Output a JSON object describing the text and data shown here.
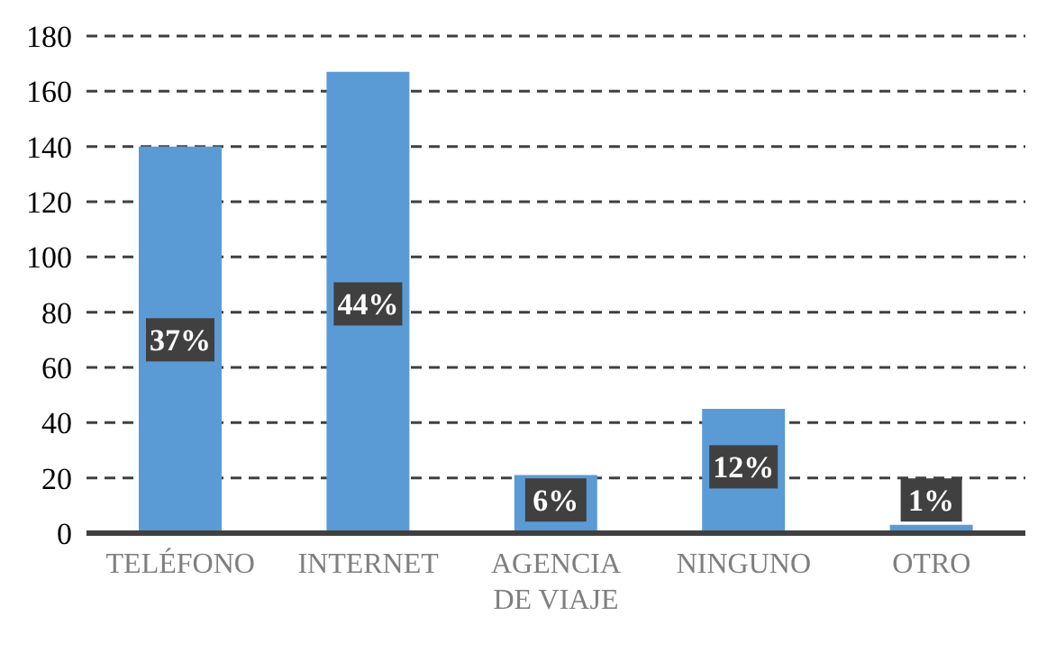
{
  "chart_data": {
    "type": "bar",
    "categories": [
      "TELÉFONO",
      "INTERNET",
      "AGENCIA DE VIAJE",
      "NINGUNO",
      "OTRO"
    ],
    "values": [
      140,
      167,
      21,
      45,
      3
    ],
    "annotations": [
      {
        "text": "37%",
        "x": "TELÉFONO",
        "y": 70
      },
      {
        "text": "44%",
        "x": "INTERNET",
        "y": 83
      },
      {
        "text": "6%",
        "x": "AGENCIA DE VIAJE",
        "y": 12
      },
      {
        "text": "12%",
        "x": "NINGUNO",
        "y": 24
      },
      {
        "text": "1%",
        "x": "OTRO",
        "y": 12
      }
    ],
    "color": "#5b9bd5",
    "ylim": [
      0,
      180
    ],
    "yticks": [
      0,
      20,
      40,
      60,
      80,
      100,
      120,
      140,
      160,
      180
    ],
    "grid": "y",
    "legend": false
  }
}
